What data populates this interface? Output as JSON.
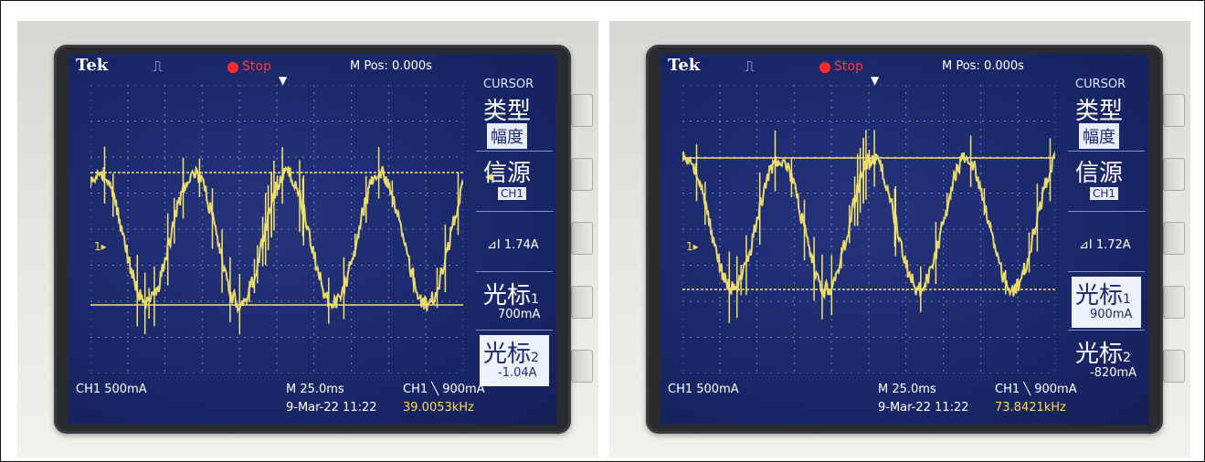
{
  "panels": [
    {
      "brand": "Tek",
      "status": "Stop",
      "m_pos": "M Pos: 0.000s",
      "menu_title": "CURSOR",
      "menu_type": "类型",
      "menu_type_value": "幅度",
      "menu_source": "信源",
      "menu_source_value": "CH1",
      "delta": "⊿I 1.74A",
      "cursor1_label": "光标",
      "cursor1_num": "1",
      "cursor1_value": "700mA",
      "cursor2_label": "光标",
      "cursor2_num": "2",
      "cursor2_value": "-1.04A",
      "ch1_scale": "CH1  500mA",
      "timebase": "M 25.0ms",
      "trigger": "CH1 ╲ 900mA",
      "date_time": "9-Mar-22 11:22",
      "frequency": "39.0053kHz",
      "selected_cursor": 2,
      "trace_color": "#f3e36a"
    },
    {
      "brand": "Tek",
      "status": "Stop",
      "m_pos": "M Pos: 0.000s",
      "menu_title": "CURSOR",
      "menu_type": "类型",
      "menu_type_value": "幅度",
      "menu_source": "信源",
      "menu_source_value": "CH1",
      "delta": "⊿I 1.72A",
      "cursor1_label": "光标",
      "cursor1_num": "1",
      "cursor1_value": "900mA",
      "cursor2_label": "光标",
      "cursor2_num": "2",
      "cursor2_value": "-820mA",
      "ch1_scale": "CH1  500mA",
      "timebase": "M 25.0ms",
      "trigger": "CH1 ╲ 900mA",
      "date_time": "9-Mar-22 11:22",
      "frequency": "73.8421kHz",
      "selected_cursor": 1,
      "trace_color": "#f3e36a"
    }
  ]
}
